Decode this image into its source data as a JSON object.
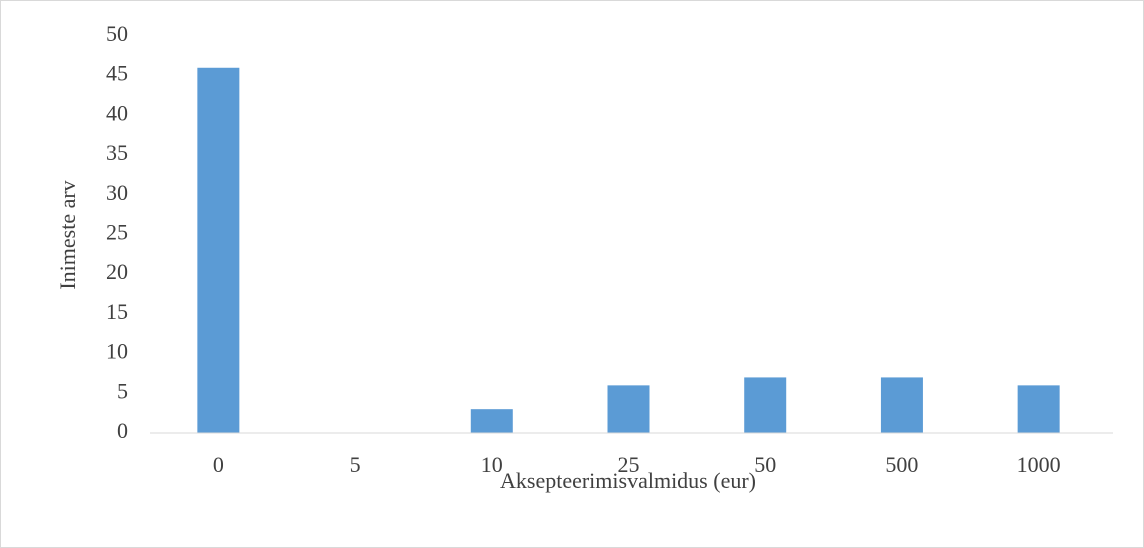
{
  "chart_data": {
    "type": "bar",
    "categories": [
      "0",
      "5",
      "10",
      "25",
      "50",
      "500",
      "1000"
    ],
    "values": [
      46,
      0,
      3,
      6,
      7,
      7,
      6
    ],
    "color": "#5b9bd5",
    "x_label": "Aksepteerimisvalmidus (eur)",
    "y_label": "Inimeste arv",
    "ylim": [
      0,
      50
    ],
    "yticks": [
      0,
      5,
      10,
      15,
      20,
      25,
      30,
      35,
      40,
      45,
      50
    ],
    "grid": false
  }
}
